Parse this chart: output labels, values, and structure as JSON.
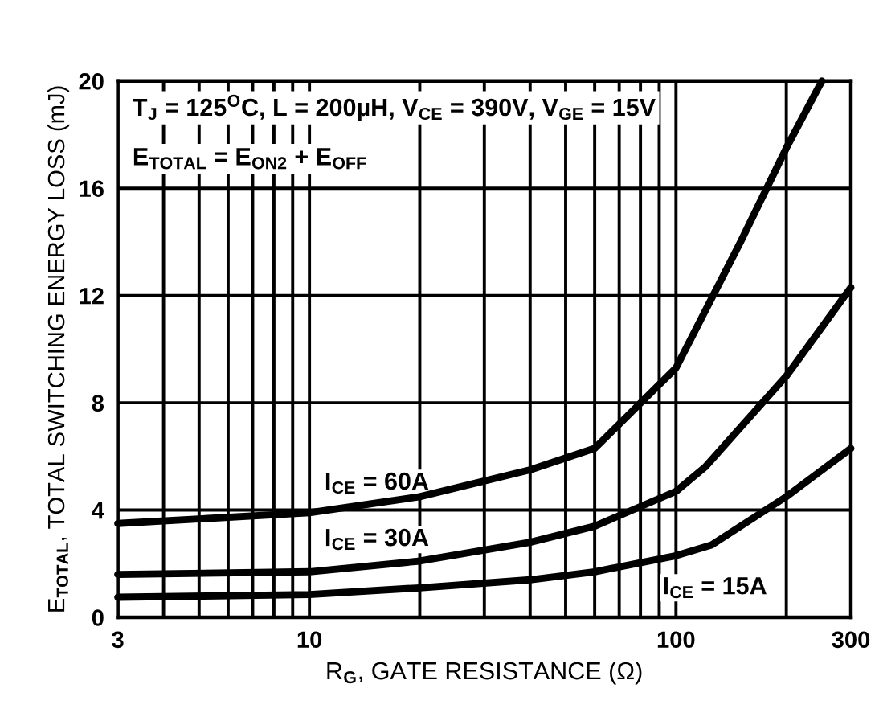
{
  "chart_data": {
    "type": "line",
    "xlabel": "R$_{G}$, GATE RESISTANCE (Ω)",
    "ylabel": "E$_{TOTAL}$, TOTAL SWITCHING ENERGY LOSS (mJ)",
    "log": "x",
    "xlim": [
      3,
      300
    ],
    "ylim": [
      0,
      20
    ],
    "xticks": [
      3,
      {
        "value": 4,
        "label": null
      },
      {
        "value": 5,
        "label": null
      },
      {
        "value": 6,
        "label": null
      },
      {
        "value": 7,
        "label": null
      },
      {
        "value": 8,
        "label": null
      },
      {
        "value": 9,
        "label": null
      },
      10,
      {
        "value": 20,
        "label": null
      },
      {
        "value": 30,
        "label": null
      },
      {
        "value": 40,
        "label": null
      },
      {
        "value": 50,
        "label": null
      },
      {
        "value": 60,
        "label": null
      },
      {
        "value": 70,
        "label": null
      },
      {
        "value": 80,
        "label": null
      },
      {
        "value": 90,
        "label": null
      },
      100,
      {
        "value": 200,
        "label": null
      },
      300
    ],
    "yticks": [
      0,
      4,
      8,
      12,
      16,
      20
    ],
    "grid": true,
    "marker": "none",
    "line_style": "solid",
    "series": [
      {
        "name": "I$_{CE}$ = 60A",
        "color": "#000000",
        "x": [
          3,
          10,
          20,
          40,
          60,
          100,
          150,
          200,
          250
        ],
        "values": [
          3.5,
          3.9,
          4.5,
          5.5,
          6.3,
          9.3,
          14,
          17.5,
          20
        ]
      },
      {
        "name": "I$_{CE}$ = 30A",
        "color": "#000000",
        "x": [
          3,
          10,
          20,
          40,
          60,
          100,
          120,
          200,
          300
        ],
        "values": [
          1.6,
          1.7,
          2.1,
          2.8,
          3.4,
          4.7,
          5.6,
          9,
          12.3
        ]
      },
      {
        "name": "I$_{CE}$ = 15A",
        "color": "#000000",
        "x": [
          3,
          10,
          20,
          40,
          60,
          100,
          125,
          200,
          300
        ],
        "values": [
          0.75,
          0.85,
          1.1,
          1.4,
          1.7,
          2.3,
          2.7,
          4.5,
          6.3
        ]
      }
    ],
    "annotations": [
      "T$_{J}$ = 125$^{O}$C, L = 200µH, V$_{CE}$ = 390V, V$_{GE}$ = 15V",
      "E$_{TOTAL}$ = E$_{ON2}$ + E$_{OFF}$"
    ]
  }
}
